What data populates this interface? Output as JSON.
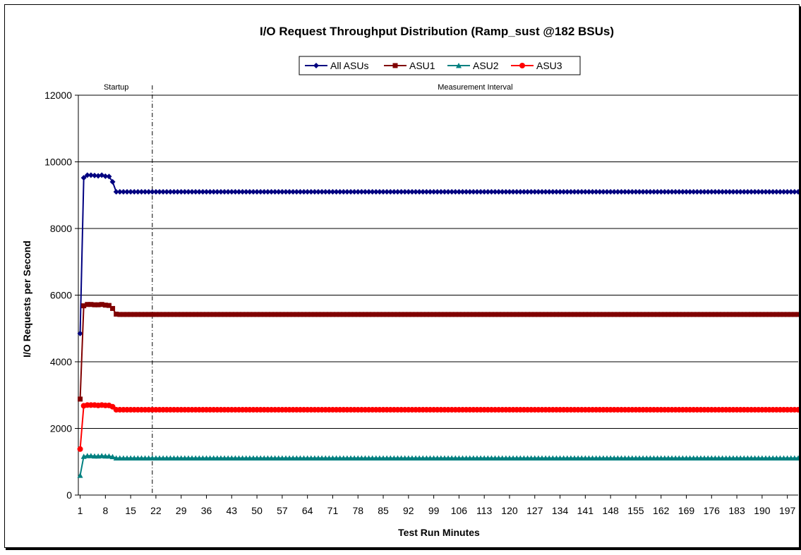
{
  "chart_data": {
    "type": "line",
    "title": "I/O Request Throughput Distribution (Ramp_sust @182 BSUs)",
    "xlabel": "Test Run Minutes",
    "ylabel": "I/O Requests per Second",
    "xlim": [
      1,
      200
    ],
    "ylim": [
      0,
      12000
    ],
    "yticks": [
      0,
      2000,
      4000,
      6000,
      8000,
      10000,
      12000
    ],
    "xticks": [
      1,
      8,
      15,
      22,
      29,
      36,
      43,
      50,
      57,
      64,
      71,
      78,
      85,
      92,
      99,
      106,
      113,
      120,
      127,
      134,
      141,
      148,
      155,
      162,
      169,
      176,
      183,
      190,
      197
    ],
    "grid": true,
    "legend": "top-center",
    "phases": [
      {
        "label": "Startup",
        "start": 1,
        "end": 21
      },
      {
        "label": "Measurement Interval",
        "start": 21,
        "end": 200
      }
    ],
    "phase_divider_x": 21,
    "series": [
      {
        "name": "All ASUs",
        "color": "#000080",
        "marker": "diamond",
        "ramp": [
          4850,
          9520,
          9600,
          9600,
          9590,
          9580,
          9600,
          9570,
          9560,
          9400,
          9100
        ],
        "steady": 9100
      },
      {
        "name": "ASU1",
        "color": "#800000",
        "marker": "square",
        "ramp": [
          2880,
          5680,
          5720,
          5720,
          5710,
          5710,
          5720,
          5700,
          5690,
          5600,
          5430
        ],
        "steady": 5420
      },
      {
        "name": "ASU2",
        "color": "#008080",
        "marker": "triangle",
        "ramp": [
          590,
          1160,
          1180,
          1180,
          1170,
          1170,
          1180,
          1170,
          1170,
          1150,
          1110
        ],
        "steady": 1110
      },
      {
        "name": "ASU3",
        "color": "#ff0000",
        "marker": "circle",
        "ramp": [
          1380,
          2680,
          2700,
          2700,
          2700,
          2690,
          2700,
          2690,
          2690,
          2650,
          2560
        ],
        "steady": 2560
      }
    ]
  }
}
